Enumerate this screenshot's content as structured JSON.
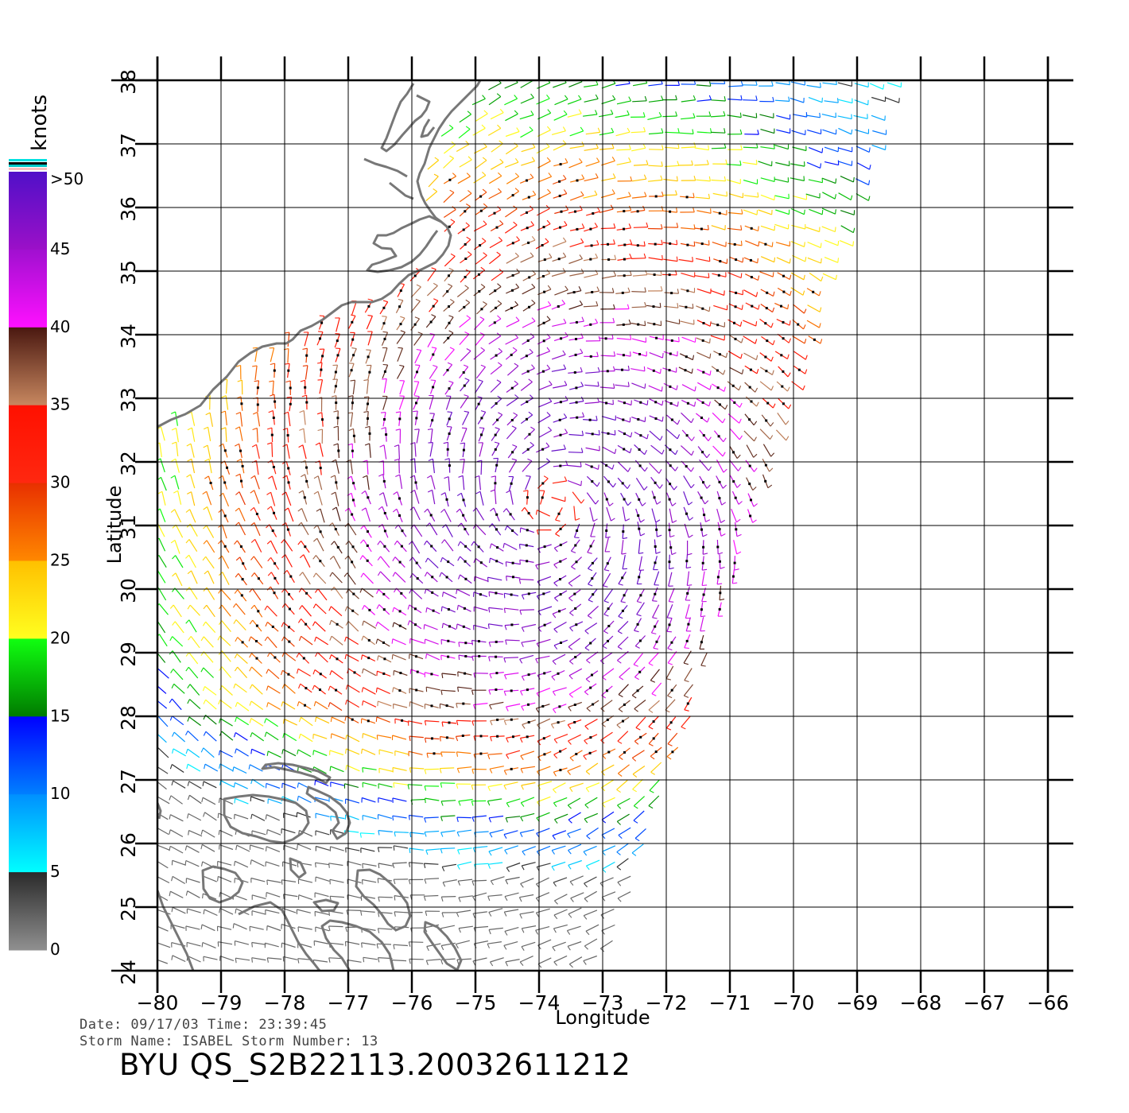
{
  "map": {
    "lon_range": [
      -80,
      -66
    ],
    "lat_range": [
      24,
      38
    ],
    "lon_ticks": [
      "−80",
      "−79",
      "−78",
      "−77",
      "−76",
      "−75",
      "−74",
      "−73",
      "−72",
      "−71",
      "−70",
      "−69",
      "−68",
      "−67",
      "−66"
    ],
    "lat_ticks": [
      "24",
      "25",
      "26",
      "27",
      "28",
      "29",
      "30",
      "31",
      "32",
      "33",
      "34",
      "35",
      "36",
      "37",
      "38"
    ],
    "xlabel": "Longitude",
    "ylabel": "Latitude",
    "grid": true,
    "layers": [
      "coastline",
      "wind-vectors",
      "rain-flags"
    ],
    "storm_center": [
      -73.8,
      31.3
    ],
    "swath_edge_nw": [
      -80,
      27
    ],
    "swath_edge_se": [
      [
        -73,
        24
      ],
      [
        -68.3,
        38
      ]
    ]
  },
  "legend": {
    "unit": "knots",
    "labels": [
      ">50",
      "45",
      "40",
      "35",
      "30",
      "25",
      "20",
      "15",
      "10",
      "5",
      "0"
    ],
    "bands": [
      {
        "from": 45,
        "to": 50,
        "top": "#5010c8",
        "bottom": "#9c10c8"
      },
      {
        "from": 40,
        "to": 45,
        "top": "#a010d0",
        "bottom": "#ff10ff"
      },
      {
        "from": 35,
        "to": 40,
        "top": "#4a1810",
        "bottom": "#c88860"
      },
      {
        "from": 30,
        "to": 35,
        "top": "#ff1000",
        "bottom": "#ff2810"
      },
      {
        "from": 25,
        "to": 30,
        "top": "#e83000",
        "bottom": "#ff8800"
      },
      {
        "from": 20,
        "to": 25,
        "top": "#ffc000",
        "bottom": "#ffff20"
      },
      {
        "from": 15,
        "to": 20,
        "top": "#10ff10",
        "bottom": "#007a00"
      },
      {
        "from": 10,
        "to": 15,
        "top": "#0000ff",
        "bottom": "#0080ff"
      },
      {
        "from": 5,
        "to": 10,
        "top": "#0090ff",
        "bottom": "#00ffff"
      },
      {
        "from": 0,
        "to": 5,
        "top": "#2a2a2a",
        "bottom": "#909090"
      }
    ]
  },
  "footer": {
    "line1": "Date: 09/17/03   Time: 23:39:45",
    "line2": "Storm  Name: ISABEL    Storm  Number: 13",
    "product": "BYU  QS_S2B22113.20032611212"
  },
  "colors": {
    "coastline": "#777777",
    "grid": "#000000",
    "rain_flag": "#000000"
  }
}
